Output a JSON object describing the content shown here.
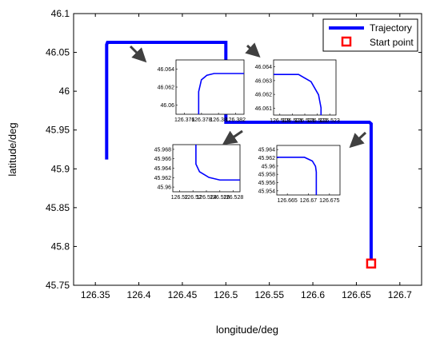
{
  "chart_data": {
    "type": "line",
    "title": "",
    "xlabel": "longitude/deg",
    "ylabel": "latitude/deg",
    "xlim": [
      126.325,
      126.725
    ],
    "ylim": [
      45.75,
      46.1
    ],
    "xticks": [
      "126.35",
      "126.4",
      "126.45",
      "126.5",
      "126.55",
      "126.6",
      "126.65",
      "126.7"
    ],
    "yticks": [
      "45.75",
      "45.8",
      "45.85",
      "45.9",
      "45.95",
      "46",
      "46.05",
      "46.1"
    ],
    "grid": false,
    "legend_position": "top-right",
    "series": [
      {
        "name": "Trajectory",
        "color": "#0000ff",
        "x": [
          126.667,
          126.667,
          126.665,
          126.5,
          126.5,
          126.364,
          126.363,
          126.363
        ],
        "y": [
          45.778,
          45.958,
          45.96,
          45.96,
          46.063,
          46.063,
          46.06,
          45.912
        ]
      },
      {
        "name": "Start point",
        "color": "#ff0000",
        "marker": "square",
        "x": [
          126.667
        ],
        "y": [
          45.778
        ]
      }
    ],
    "insets": [
      {
        "xticks": [
          "126.376",
          "126.378",
          "126.38",
          "126.382"
        ],
        "yticks": [
          "46.06",
          "46.062",
          "46.064"
        ],
        "xlim": [
          126.375,
          126.3825
        ],
        "ylim": [
          46.059,
          46.065
        ],
        "x": [
          126.3775,
          126.3775,
          126.3778,
          126.3784,
          126.3792,
          126.3825
        ],
        "y": [
          46.059,
          46.0615,
          46.0628,
          46.0633,
          46.0635,
          46.0635
        ]
      },
      {
        "xticks": [
          "126.519",
          "126.521",
          "126.521",
          "126.522",
          "126.523"
        ],
        "yticks": [
          "46.061",
          "46.062",
          "46.063",
          "46.064"
        ],
        "xlim": [
          126.5185,
          126.5235
        ],
        "ylim": [
          46.0604,
          46.0642
        ],
        "x": [
          126.5185,
          126.5205,
          126.5215,
          126.5221,
          126.5223,
          126.5223
        ],
        "y": [
          46.0632,
          46.0632,
          46.0627,
          46.0618,
          46.0609,
          46.0604
        ]
      },
      {
        "xticks": [
          "126.52",
          "126.52",
          "126.524",
          "126.526",
          "126.528"
        ],
        "yticks": [
          "45.96",
          "45.962",
          "45.964",
          "45.966",
          "45.968"
        ],
        "xlim": [
          126.5195,
          126.5288
        ],
        "ylim": [
          45.9594,
          45.9686
        ],
        "x": [
          126.5227,
          126.5227,
          126.5232,
          126.5245,
          126.526,
          126.5288
        ],
        "y": [
          45.9686,
          45.9648,
          45.9633,
          45.9622,
          45.9617,
          45.9617
        ]
      },
      {
        "xticks": [
          "126.665",
          "126.67",
          "126.675"
        ],
        "yticks": [
          "45.954",
          "45.956",
          "45.958",
          "45.96",
          "45.962",
          "45.964"
        ],
        "xlim": [
          126.66,
          126.676
        ],
        "ylim": [
          45.9524,
          45.9645
        ],
        "x": [
          126.66,
          126.667,
          126.669,
          126.6698,
          126.67,
          126.67
        ],
        "y": [
          45.9616,
          45.9616,
          45.9607,
          45.9594,
          45.958,
          45.9524
        ]
      }
    ]
  }
}
